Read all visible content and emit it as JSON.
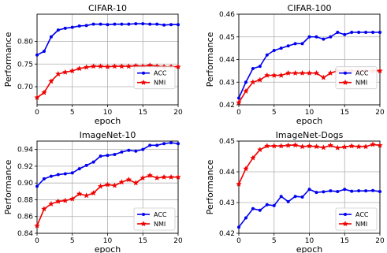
{
  "chart_data": [
    {
      "type": "line",
      "title": "CIFAR-10",
      "xlabel": "epoch",
      "ylabel": "Performance",
      "xlim": [
        0,
        20
      ],
      "ylim": [
        0.66,
        0.86
      ],
      "xticks": [
        0,
        5,
        10,
        15,
        20
      ],
      "yticks": [
        0.7,
        0.75,
        0.8
      ],
      "ytick_labels": [
        "0.70",
        "0.75",
        "0.80"
      ],
      "grid": true,
      "legend_position": "right",
      "x": [
        0,
        1,
        2,
        3,
        4,
        5,
        6,
        7,
        8,
        9,
        10,
        11,
        12,
        13,
        14,
        15,
        16,
        17,
        18,
        19,
        20
      ],
      "series": [
        {
          "name": "ACC",
          "color": "#0000ee",
          "marker": "dot",
          "values": [
            0.77,
            0.778,
            0.81,
            0.825,
            0.829,
            0.831,
            0.834,
            0.835,
            0.838,
            0.838,
            0.837,
            0.838,
            0.838,
            0.838,
            0.839,
            0.839,
            0.838,
            0.838,
            0.836,
            0.837,
            0.837
          ]
        },
        {
          "name": "NMI",
          "color": "#ee0000",
          "marker": "star",
          "values": [
            0.676,
            0.687,
            0.712,
            0.728,
            0.732,
            0.735,
            0.74,
            0.743,
            0.745,
            0.745,
            0.744,
            0.745,
            0.745,
            0.745,
            0.746,
            0.745,
            0.747,
            0.745,
            0.744,
            0.744,
            0.744
          ]
        }
      ]
    },
    {
      "type": "line",
      "title": "CIFAR-100",
      "xlabel": "epoch",
      "ylabel": "Performance",
      "xlim": [
        0,
        20
      ],
      "ylim": [
        0.42,
        0.46
      ],
      "xticks": [
        0,
        5,
        10,
        15,
        20
      ],
      "yticks": [
        0.42,
        0.43,
        0.44,
        0.45,
        0.46
      ],
      "ytick_labels": [
        "0.42",
        "0.43",
        "0.44",
        "0.45",
        "0.46"
      ],
      "grid": true,
      "legend_position": "right",
      "x": [
        0,
        1,
        2,
        3,
        4,
        5,
        6,
        7,
        8,
        9,
        10,
        11,
        12,
        13,
        14,
        15,
        16,
        17,
        18,
        19,
        20
      ],
      "series": [
        {
          "name": "ACC",
          "color": "#0000ee",
          "marker": "dot",
          "values": [
            0.423,
            0.43,
            0.436,
            0.437,
            0.442,
            0.444,
            0.445,
            0.446,
            0.447,
            0.447,
            0.45,
            0.45,
            0.449,
            0.45,
            0.452,
            0.451,
            0.452,
            0.452,
            0.452,
            0.452,
            0.452
          ]
        },
        {
          "name": "NMI",
          "color": "#ee0000",
          "marker": "star",
          "values": [
            0.421,
            0.426,
            0.43,
            0.431,
            0.433,
            0.433,
            0.433,
            0.434,
            0.434,
            0.434,
            0.434,
            0.434,
            0.432,
            0.434,
            0.435,
            0.435,
            0.435,
            0.435,
            0.435,
            0.435,
            0.435
          ]
        }
      ]
    },
    {
      "type": "line",
      "title": "ImageNet-10",
      "xlabel": "epoch",
      "ylabel": "Performance",
      "xlim": [
        0,
        20
      ],
      "ylim": [
        0.84,
        0.95
      ],
      "xticks": [
        0,
        5,
        10,
        15,
        20
      ],
      "yticks": [
        0.84,
        0.86,
        0.88,
        0.9,
        0.92,
        0.94
      ],
      "ytick_labels": [
        "0.84",
        "0.86",
        "0.88",
        "0.90",
        "0.92",
        "0.94"
      ],
      "grid": true,
      "legend_position": "bottom-right",
      "x": [
        0,
        1,
        2,
        3,
        4,
        5,
        6,
        7,
        8,
        9,
        10,
        11,
        12,
        13,
        14,
        15,
        16,
        17,
        18,
        19,
        20
      ],
      "series": [
        {
          "name": "ACC",
          "color": "#0000ee",
          "marker": "dot",
          "values": [
            0.896,
            0.905,
            0.908,
            0.91,
            0.911,
            0.912,
            0.917,
            0.921,
            0.925,
            0.932,
            0.933,
            0.934,
            0.937,
            0.939,
            0.938,
            0.94,
            0.945,
            0.945,
            0.947,
            0.948,
            0.947
          ]
        },
        {
          "name": "NMI",
          "color": "#ee0000",
          "marker": "star",
          "values": [
            0.849,
            0.869,
            0.875,
            0.878,
            0.879,
            0.881,
            0.887,
            0.885,
            0.888,
            0.896,
            0.898,
            0.897,
            0.901,
            0.904,
            0.9,
            0.906,
            0.909,
            0.906,
            0.907,
            0.907,
            0.907
          ]
        }
      ]
    },
    {
      "type": "line",
      "title": "ImageNet-Dogs",
      "xlabel": "epoch",
      "ylabel": "Performance",
      "xlim": [
        0,
        20
      ],
      "ylim": [
        0.42,
        0.45
      ],
      "xticks": [
        0,
        5,
        10,
        15,
        20
      ],
      "yticks": [
        0.42,
        0.43,
        0.44,
        0.45
      ],
      "ytick_labels": [
        "0.42",
        "0.43",
        "0.44",
        "0.45"
      ],
      "grid": true,
      "legend_position": "bottom-right",
      "x": [
        0,
        1,
        2,
        3,
        4,
        5,
        6,
        7,
        8,
        9,
        10,
        11,
        12,
        13,
        14,
        15,
        16,
        17,
        18,
        19,
        20
      ],
      "series": [
        {
          "name": "ACC",
          "color": "#0000ee",
          "marker": "dot",
          "values": [
            0.422,
            0.425,
            0.428,
            0.4275,
            0.4293,
            0.429,
            0.432,
            0.4303,
            0.432,
            0.4318,
            0.4343,
            0.4333,
            0.4335,
            0.4338,
            0.4336,
            0.4343,
            0.4337,
            0.4338,
            0.4338,
            0.4339,
            0.4336
          ]
        },
        {
          "name": "NMI",
          "color": "#ee0000",
          "marker": "star",
          "values": [
            0.436,
            0.441,
            0.4445,
            0.4472,
            0.4484,
            0.4484,
            0.4484,
            0.4486,
            0.4487,
            0.4482,
            0.4484,
            0.4482,
            0.4479,
            0.4486,
            0.4478,
            0.4481,
            0.4484,
            0.4482,
            0.4482,
            0.4489,
            0.4486
          ]
        }
      ]
    }
  ]
}
